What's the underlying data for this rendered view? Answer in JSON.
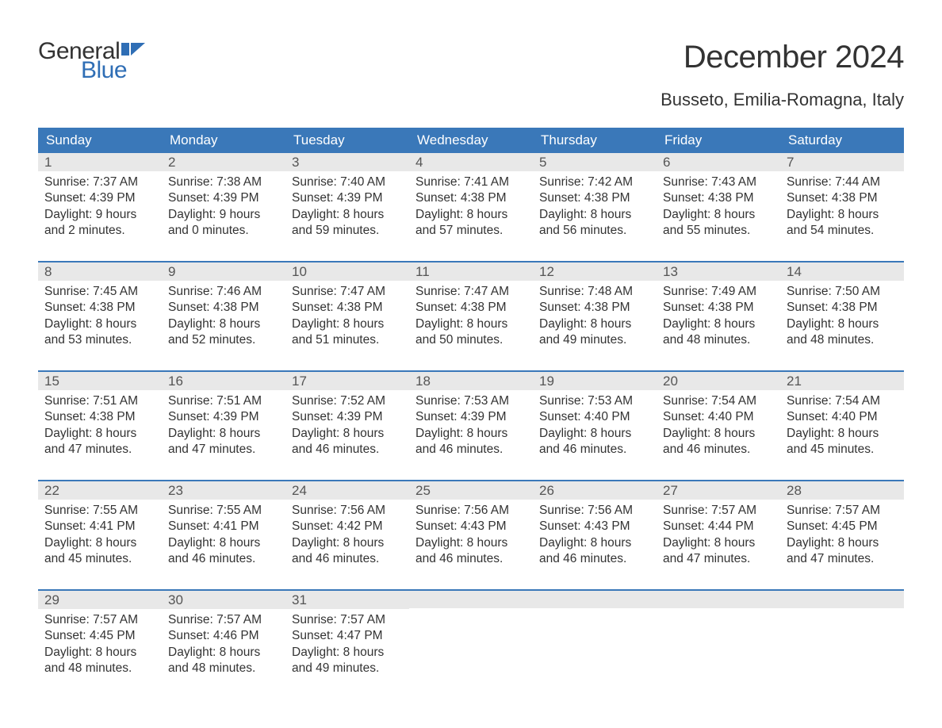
{
  "logo": {
    "general": "General",
    "blue": "Blue",
    "flag_color": "#2f6eb5"
  },
  "title": "December 2024",
  "location": "Busseto, Emilia-Romagna, Italy",
  "colors": {
    "header_bg": "#3a78b9",
    "header_text": "#ffffff",
    "daynum_bg": "#e8e8e8",
    "text": "#333333",
    "accent": "#2f6eb5"
  },
  "day_names": [
    "Sunday",
    "Monday",
    "Tuesday",
    "Wednesday",
    "Thursday",
    "Friday",
    "Saturday"
  ],
  "weeks": [
    [
      {
        "num": "1",
        "sunrise": "Sunrise: 7:37 AM",
        "sunset": "Sunset: 4:39 PM",
        "dl1": "Daylight: 9 hours",
        "dl2": "and 2 minutes."
      },
      {
        "num": "2",
        "sunrise": "Sunrise: 7:38 AM",
        "sunset": "Sunset: 4:39 PM",
        "dl1": "Daylight: 9 hours",
        "dl2": "and 0 minutes."
      },
      {
        "num": "3",
        "sunrise": "Sunrise: 7:40 AM",
        "sunset": "Sunset: 4:39 PM",
        "dl1": "Daylight: 8 hours",
        "dl2": "and 59 minutes."
      },
      {
        "num": "4",
        "sunrise": "Sunrise: 7:41 AM",
        "sunset": "Sunset: 4:38 PM",
        "dl1": "Daylight: 8 hours",
        "dl2": "and 57 minutes."
      },
      {
        "num": "5",
        "sunrise": "Sunrise: 7:42 AM",
        "sunset": "Sunset: 4:38 PM",
        "dl1": "Daylight: 8 hours",
        "dl2": "and 56 minutes."
      },
      {
        "num": "6",
        "sunrise": "Sunrise: 7:43 AM",
        "sunset": "Sunset: 4:38 PM",
        "dl1": "Daylight: 8 hours",
        "dl2": "and 55 minutes."
      },
      {
        "num": "7",
        "sunrise": "Sunrise: 7:44 AM",
        "sunset": "Sunset: 4:38 PM",
        "dl1": "Daylight: 8 hours",
        "dl2": "and 54 minutes."
      }
    ],
    [
      {
        "num": "8",
        "sunrise": "Sunrise: 7:45 AM",
        "sunset": "Sunset: 4:38 PM",
        "dl1": "Daylight: 8 hours",
        "dl2": "and 53 minutes."
      },
      {
        "num": "9",
        "sunrise": "Sunrise: 7:46 AM",
        "sunset": "Sunset: 4:38 PM",
        "dl1": "Daylight: 8 hours",
        "dl2": "and 52 minutes."
      },
      {
        "num": "10",
        "sunrise": "Sunrise: 7:47 AM",
        "sunset": "Sunset: 4:38 PM",
        "dl1": "Daylight: 8 hours",
        "dl2": "and 51 minutes."
      },
      {
        "num": "11",
        "sunrise": "Sunrise: 7:47 AM",
        "sunset": "Sunset: 4:38 PM",
        "dl1": "Daylight: 8 hours",
        "dl2": "and 50 minutes."
      },
      {
        "num": "12",
        "sunrise": "Sunrise: 7:48 AM",
        "sunset": "Sunset: 4:38 PM",
        "dl1": "Daylight: 8 hours",
        "dl2": "and 49 minutes."
      },
      {
        "num": "13",
        "sunrise": "Sunrise: 7:49 AM",
        "sunset": "Sunset: 4:38 PM",
        "dl1": "Daylight: 8 hours",
        "dl2": "and 48 minutes."
      },
      {
        "num": "14",
        "sunrise": "Sunrise: 7:50 AM",
        "sunset": "Sunset: 4:38 PM",
        "dl1": "Daylight: 8 hours",
        "dl2": "and 48 minutes."
      }
    ],
    [
      {
        "num": "15",
        "sunrise": "Sunrise: 7:51 AM",
        "sunset": "Sunset: 4:38 PM",
        "dl1": "Daylight: 8 hours",
        "dl2": "and 47 minutes."
      },
      {
        "num": "16",
        "sunrise": "Sunrise: 7:51 AM",
        "sunset": "Sunset: 4:39 PM",
        "dl1": "Daylight: 8 hours",
        "dl2": "and 47 minutes."
      },
      {
        "num": "17",
        "sunrise": "Sunrise: 7:52 AM",
        "sunset": "Sunset: 4:39 PM",
        "dl1": "Daylight: 8 hours",
        "dl2": "and 46 minutes."
      },
      {
        "num": "18",
        "sunrise": "Sunrise: 7:53 AM",
        "sunset": "Sunset: 4:39 PM",
        "dl1": "Daylight: 8 hours",
        "dl2": "and 46 minutes."
      },
      {
        "num": "19",
        "sunrise": "Sunrise: 7:53 AM",
        "sunset": "Sunset: 4:40 PM",
        "dl1": "Daylight: 8 hours",
        "dl2": "and 46 minutes."
      },
      {
        "num": "20",
        "sunrise": "Sunrise: 7:54 AM",
        "sunset": "Sunset: 4:40 PM",
        "dl1": "Daylight: 8 hours",
        "dl2": "and 46 minutes."
      },
      {
        "num": "21",
        "sunrise": "Sunrise: 7:54 AM",
        "sunset": "Sunset: 4:40 PM",
        "dl1": "Daylight: 8 hours",
        "dl2": "and 45 minutes."
      }
    ],
    [
      {
        "num": "22",
        "sunrise": "Sunrise: 7:55 AM",
        "sunset": "Sunset: 4:41 PM",
        "dl1": "Daylight: 8 hours",
        "dl2": "and 45 minutes."
      },
      {
        "num": "23",
        "sunrise": "Sunrise: 7:55 AM",
        "sunset": "Sunset: 4:41 PM",
        "dl1": "Daylight: 8 hours",
        "dl2": "and 46 minutes."
      },
      {
        "num": "24",
        "sunrise": "Sunrise: 7:56 AM",
        "sunset": "Sunset: 4:42 PM",
        "dl1": "Daylight: 8 hours",
        "dl2": "and 46 minutes."
      },
      {
        "num": "25",
        "sunrise": "Sunrise: 7:56 AM",
        "sunset": "Sunset: 4:43 PM",
        "dl1": "Daylight: 8 hours",
        "dl2": "and 46 minutes."
      },
      {
        "num": "26",
        "sunrise": "Sunrise: 7:56 AM",
        "sunset": "Sunset: 4:43 PM",
        "dl1": "Daylight: 8 hours",
        "dl2": "and 46 minutes."
      },
      {
        "num": "27",
        "sunrise": "Sunrise: 7:57 AM",
        "sunset": "Sunset: 4:44 PM",
        "dl1": "Daylight: 8 hours",
        "dl2": "and 47 minutes."
      },
      {
        "num": "28",
        "sunrise": "Sunrise: 7:57 AM",
        "sunset": "Sunset: 4:45 PM",
        "dl1": "Daylight: 8 hours",
        "dl2": "and 47 minutes."
      }
    ],
    [
      {
        "num": "29",
        "sunrise": "Sunrise: 7:57 AM",
        "sunset": "Sunset: 4:45 PM",
        "dl1": "Daylight: 8 hours",
        "dl2": "and 48 minutes."
      },
      {
        "num": "30",
        "sunrise": "Sunrise: 7:57 AM",
        "sunset": "Sunset: 4:46 PM",
        "dl1": "Daylight: 8 hours",
        "dl2": "and 48 minutes."
      },
      {
        "num": "31",
        "sunrise": "Sunrise: 7:57 AM",
        "sunset": "Sunset: 4:47 PM",
        "dl1": "Daylight: 8 hours",
        "dl2": "and 49 minutes."
      },
      {
        "empty": true
      },
      {
        "empty": true
      },
      {
        "empty": true
      },
      {
        "empty": true
      }
    ]
  ]
}
